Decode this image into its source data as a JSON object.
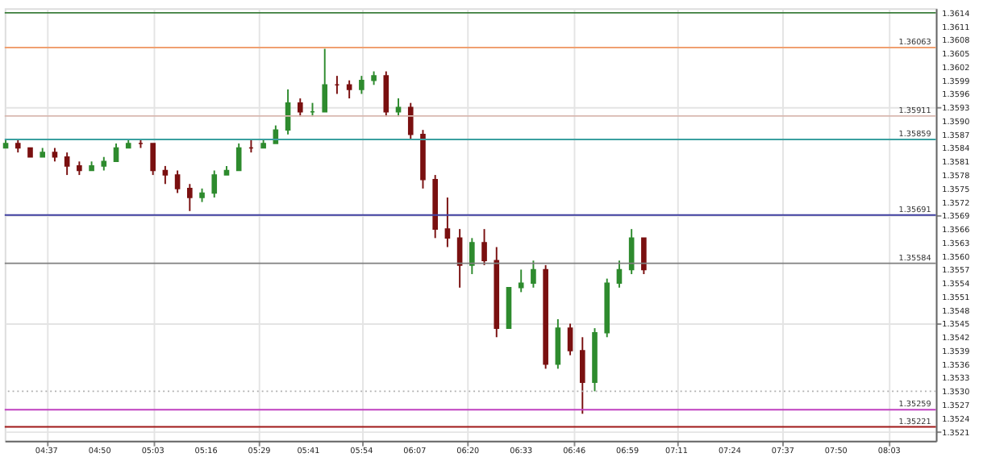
{
  "chart_data": {
    "type": "candlestick",
    "x": [
      4.45,
      4.5,
      4.55,
      4.6,
      4.65,
      4.7,
      4.75,
      4.8,
      4.85,
      4.9,
      4.95,
      5.0,
      5.05,
      5.1,
      5.15,
      5.2,
      5.25,
      5.3,
      5.35,
      5.4,
      5.45,
      5.5,
      5.55,
      5.6,
      5.65,
      5.7,
      5.75,
      5.8,
      5.85,
      5.9,
      5.95,
      6.0,
      6.05,
      6.1,
      6.15,
      6.2,
      6.25,
      6.3,
      6.35,
      6.4,
      6.45,
      6.5,
      6.55,
      6.6,
      6.65,
      6.7,
      6.75,
      6.8,
      6.85,
      6.9,
      6.95,
      7.0,
      7.05
    ],
    "ohlc": [
      [
        1.3584,
        1.3586,
        1.3584,
        1.3585
      ],
      [
        1.3585,
        1.3586,
        1.3583,
        1.3584
      ],
      [
        1.3584,
        1.3584,
        1.3582,
        1.3582
      ],
      [
        1.3582,
        1.3584,
        1.3582,
        1.3583
      ],
      [
        1.3583,
        1.3584,
        1.3581,
        1.3582
      ],
      [
        1.3582,
        1.3583,
        1.3578,
        1.358
      ],
      [
        1.358,
        1.3581,
        1.3578,
        1.3579
      ],
      [
        1.3579,
        1.3581,
        1.3579,
        1.358
      ],
      [
        1.358,
        1.3582,
        1.3579,
        1.3581
      ],
      [
        1.3581,
        1.3585,
        1.3581,
        1.3584
      ],
      [
        1.3584,
        1.3586,
        1.3584,
        1.3585
      ],
      [
        1.3585,
        1.3586,
        1.3584,
        1.3585
      ],
      [
        1.3585,
        1.3585,
        1.3578,
        1.3579
      ],
      [
        1.3579,
        1.358,
        1.3576,
        1.3578
      ],
      [
        1.3578,
        1.3579,
        1.3574,
        1.3575
      ],
      [
        1.3575,
        1.3576,
        1.357,
        1.3573
      ],
      [
        1.3573,
        1.3575,
        1.3572,
        1.3574
      ],
      [
        1.3574,
        1.3579,
        1.3573,
        1.3578
      ],
      [
        1.3578,
        1.358,
        1.3578,
        1.3579
      ],
      [
        1.3579,
        1.3585,
        1.3579,
        1.3584
      ],
      [
        1.3584,
        1.3586,
        1.3583,
        1.3584
      ],
      [
        1.3584,
        1.3586,
        1.3584,
        1.3585
      ],
      [
        1.3585,
        1.3589,
        1.3585,
        1.3588
      ],
      [
        1.3588,
        1.3597,
        1.3587,
        1.3594
      ],
      [
        1.3594,
        1.3595,
        1.3591,
        1.3592
      ],
      [
        1.3592,
        1.3594,
        1.3591,
        1.3592
      ],
      [
        1.3592,
        1.3606,
        1.3592,
        1.3598
      ],
      [
        1.3598,
        1.36,
        1.3596,
        1.3598
      ],
      [
        1.3598,
        1.3599,
        1.3595,
        1.3597
      ],
      [
        1.3597,
        1.36,
        1.3596,
        1.3599
      ],
      [
        1.3599,
        1.3601,
        1.3598,
        1.36
      ],
      [
        1.36,
        1.3601,
        1.3591,
        1.3592
      ],
      [
        1.3592,
        1.3595,
        1.3591,
        1.3593
      ],
      [
        1.3593,
        1.3594,
        1.3586,
        1.3587
      ],
      [
        1.3587,
        1.3588,
        1.3575,
        1.3577
      ],
      [
        1.3577,
        1.3578,
        1.3564,
        1.3566
      ],
      [
        1.3566,
        1.3573,
        1.3562,
        1.3564
      ],
      [
        1.3564,
        1.3566,
        1.3553,
        1.3558
      ],
      [
        1.3558,
        1.3564,
        1.3556,
        1.3563
      ],
      [
        1.3563,
        1.3566,
        1.3558,
        1.3559
      ],
      [
        1.3559,
        1.3562,
        1.3542,
        1.3544
      ],
      [
        1.3544,
        1.3553,
        1.3544,
        1.3553
      ],
      [
        1.3553,
        1.3557,
        1.3552,
        1.3554
      ],
      [
        1.3554,
        1.3559,
        1.3553,
        1.3557
      ],
      [
        1.3557,
        1.3558,
        1.3535,
        1.3536
      ],
      [
        1.3536,
        1.3546,
        1.3535,
        1.3544
      ],
      [
        1.3544,
        1.3545,
        1.3538,
        1.3539
      ],
      [
        1.3539,
        1.3542,
        1.3525,
        1.3532
      ],
      [
        1.3532,
        1.3544,
        1.353,
        1.3543
      ],
      [
        1.3543,
        1.3555,
        1.3542,
        1.3554
      ],
      [
        1.3554,
        1.3559,
        1.3553,
        1.3557
      ],
      [
        1.3557,
        1.3566,
        1.3556,
        1.3564
      ],
      [
        1.3564,
        1.3564,
        1.3556,
        1.3557
      ]
    ],
    "colors": [
      "#2e8b2e",
      "#7a1010",
      "#7a1010",
      "#2e8b2e",
      "#7a1010",
      "#7a1010",
      "#7a1010",
      "#2e8b2e",
      "#2e8b2e",
      "#2e8b2e",
      "#2e8b2e",
      "#7a1010",
      "#7a1010",
      "#7a1010",
      "#7a1010",
      "#7a1010",
      "#2e8b2e",
      "#2e8b2e",
      "#2e8b2e",
      "#2e8b2e",
      "#7a1010",
      "#2e8b2e",
      "#2e8b2e",
      "#2e8b2e",
      "#7a1010",
      "#2e8b2e",
      "#2e8b2e",
      "#7a1010",
      "#7a1010",
      "#2e8b2e",
      "#2e8b2e",
      "#7a1010",
      "#2e8b2e",
      "#7a1010",
      "#7a1010",
      "#7a1010",
      "#7a1010",
      "#7a1010",
      "#2e8b2e",
      "#7a1010",
      "#7a1010",
      "#2e8b2e",
      "#2e8b2e",
      "#2e8b2e",
      "#7a1010",
      "#2e8b2e",
      "#7a1010",
      "#7a1010",
      "#2e8b2e",
      "#2e8b2e",
      "#2e8b2e",
      "#2e8b2e",
      "#7a1010"
    ],
    "xlim": [
      4.446,
      8.24
    ],
    "xticks": [
      {
        "value": 4.6167,
        "label": "04:37"
      },
      {
        "value": 4.8333,
        "label": "04:50"
      },
      {
        "value": 5.05,
        "label": "05:03"
      },
      {
        "value": 5.2667,
        "label": "05:16"
      },
      {
        "value": 5.4833,
        "label": "05:29"
      },
      {
        "value": 5.6833,
        "label": "05:41"
      },
      {
        "value": 5.9,
        "label": "05:54"
      },
      {
        "value": 6.1167,
        "label": "06:07"
      },
      {
        "value": 6.3333,
        "label": "06:20"
      },
      {
        "value": 6.55,
        "label": "06:33"
      },
      {
        "value": 6.7667,
        "label": "06:46"
      },
      {
        "value": 6.9833,
        "label": "06:59"
      },
      {
        "value": 7.1833,
        "label": "07:11"
      },
      {
        "value": 7.4,
        "label": "07:24"
      },
      {
        "value": 7.6167,
        "label": "07:37"
      },
      {
        "value": 7.8333,
        "label": "07:50"
      },
      {
        "value": 8.05,
        "label": "08:03"
      }
    ],
    "ylim": [
      1.3519,
      1.3615
    ],
    "yticks": [
      1.3521,
      1.3524,
      1.3527,
      {
        "value": 1.353,
        "label": "1.3530"
      },
      1.3533,
      1.3536,
      1.3539,
      1.3542,
      1.3545,
      1.3548,
      1.3551,
      1.3554,
      1.3557,
      {
        "value": 1.356,
        "label": "1.3560"
      },
      1.3563,
      1.3566,
      1.3569,
      1.3572,
      1.3575,
      1.3578,
      1.3581,
      1.3584,
      1.3587,
      {
        "value": 1.359,
        "label": "1.3590"
      },
      1.3593,
      1.3596,
      1.3599,
      1.3602,
      1.3605,
      1.3608,
      1.3611,
      1.3614
    ],
    "grid": true,
    "ref_lines": [
      {
        "axis": "y",
        "value": 1.3614,
        "color": "#3a7d3a",
        "line_style": "solid"
      },
      {
        "axis": "y",
        "value": 1.36063,
        "label": "1.36063",
        "color": "#f0a070",
        "line_style": "solid"
      },
      {
        "axis": "y",
        "value": 1.35911,
        "label": "1.35911",
        "color": "#d8b8b0",
        "line_style": "solid"
      },
      {
        "axis": "y",
        "value": 1.35859,
        "label": "1.35859",
        "color": "#3aa0a0",
        "line_style": "solid"
      },
      {
        "axis": "y",
        "value": 1.35691,
        "label": "1.35691",
        "color": "#4040a0",
        "line_style": "solid"
      },
      {
        "axis": "y",
        "value": 1.35584,
        "label": "1.35584",
        "color": "#808080",
        "line_style": "solid"
      },
      {
        "axis": "y",
        "value": 1.353,
        "color": "#b0b0b0",
        "line_style": "dotted"
      },
      {
        "axis": "y",
        "value": 1.35259,
        "label": "1.35259",
        "color": "#c040c0",
        "line_style": "solid"
      },
      {
        "axis": "y",
        "value": 1.35221,
        "label": "1.35221",
        "color": "#a01818",
        "line_style": "solid"
      }
    ]
  }
}
